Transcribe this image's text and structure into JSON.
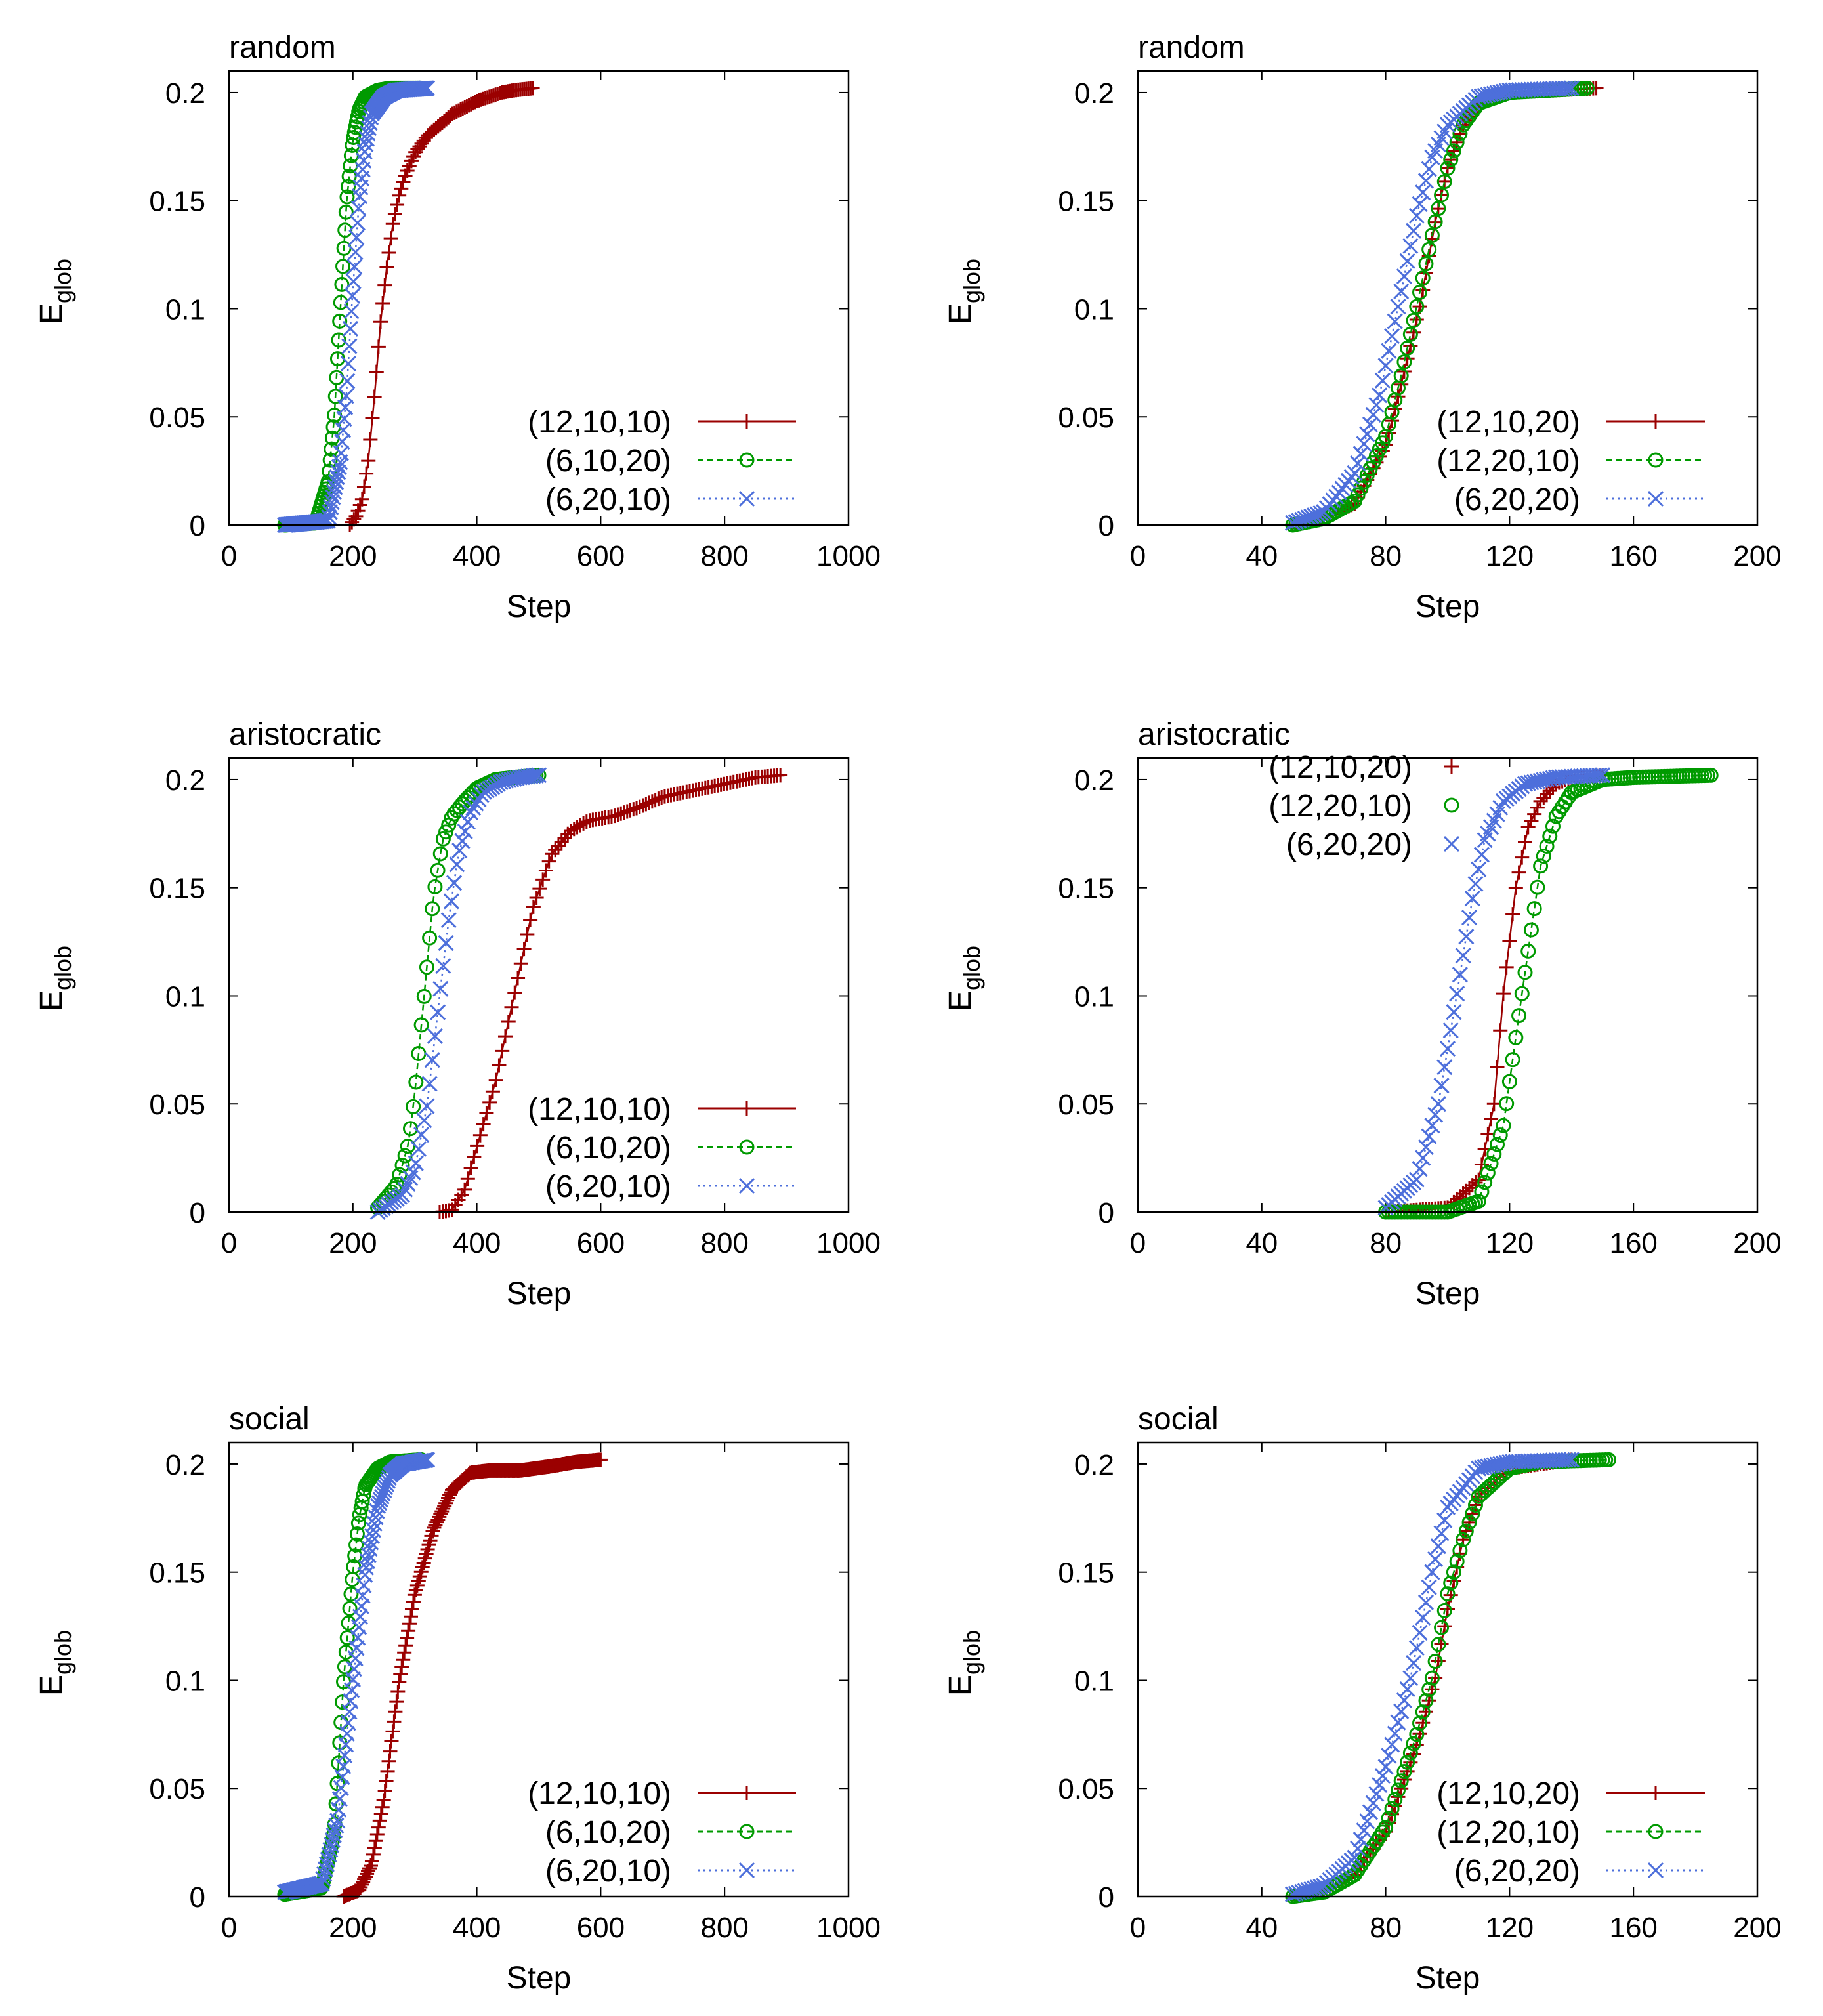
{
  "chart_data": [
    {
      "type": "line",
      "title": "random",
      "xlabel": "Step",
      "ylabel": "E",
      "ylabel_sub": "glob",
      "xlim": [
        0,
        1000
      ],
      "ylim": [
        0,
        0.21
      ],
      "xticks": [
        "0",
        "200",
        "400",
        "600",
        "800",
        "1000"
      ],
      "xtick_values": [
        0,
        200,
        400,
        600,
        800,
        1000
      ],
      "yticks": [
        "0",
        "0.05",
        "0.1",
        "0.15",
        "0.2"
      ],
      "ytick_values": [
        0,
        0.05,
        0.1,
        0.15,
        0.2
      ],
      "legend_position": "bottom-right",
      "series": [
        {
          "name": "(12,10,10)",
          "color": "#9b0000",
          "marker": "plus",
          "linestyle": "solid",
          "start": 195,
          "mid": 245,
          "width": 24,
          "end": 490,
          "n": 90,
          "x": [
            195,
            205,
            215,
            225,
            235,
            245,
            255,
            265,
            275,
            285,
            300,
            320,
            340,
            360,
            380,
            400,
            420,
            440,
            460,
            490
          ],
          "y": [
            0.0,
            0.004,
            0.012,
            0.03,
            0.06,
            0.095,
            0.12,
            0.14,
            0.153,
            0.162,
            0.172,
            0.18,
            0.185,
            0.19,
            0.193,
            0.196,
            0.198,
            0.2,
            0.201,
            0.202
          ]
        },
        {
          "name": "(6,10,20)",
          "color": "#009a00",
          "marker": "circle",
          "linestyle": "dashed",
          "start": 90,
          "mid": 180,
          "width": 12,
          "end": 310,
          "n": 130,
          "x": [
            90,
            140,
            160,
            170,
            180,
            190,
            200,
            210,
            220,
            240,
            260,
            310
          ],
          "y": [
            0.0,
            0.001,
            0.02,
            0.05,
            0.101,
            0.15,
            0.178,
            0.192,
            0.198,
            0.201,
            0.202,
            0.202
          ]
        },
        {
          "name": "(6,20,10)",
          "color": "#4d6fdb",
          "marker": "cross",
          "linestyle": "dotted",
          "start": 90,
          "mid": 198,
          "width": 15,
          "end": 320,
          "n": 140,
          "x": [
            90,
            160,
            180,
            190,
            198,
            210,
            220,
            230,
            250,
            270,
            320
          ],
          "y": [
            0.0,
            0.002,
            0.03,
            0.062,
            0.101,
            0.15,
            0.175,
            0.19,
            0.198,
            0.201,
            0.202
          ]
        }
      ]
    },
    {
      "type": "line",
      "title": "random",
      "xlabel": "Step",
      "ylabel": "E",
      "ylabel_sub": "glob",
      "xlim": [
        0,
        200
      ],
      "ylim": [
        0,
        0.21
      ],
      "xticks": [
        "0",
        "40",
        "80",
        "120",
        "160",
        "200"
      ],
      "xtick_values": [
        0,
        40,
        80,
        120,
        160,
        200
      ],
      "yticks": [
        "0",
        "0.05",
        "0.1",
        "0.15",
        "0.2"
      ],
      "ytick_values": [
        0,
        0.05,
        0.1,
        0.15,
        0.2
      ],
      "legend_position": "bottom-right",
      "series": [
        {
          "name": "(12,10,20)",
          "color": "#9b0000",
          "marker": "plus",
          "linestyle": "solid",
          "start": 50,
          "mid": 91,
          "width": 6.5,
          "end": 148,
          "n": 99,
          "x": [
            50,
            60,
            70,
            80,
            85,
            91,
            96,
            100,
            105,
            110,
            120,
            148
          ],
          "y": [
            0.0,
            0.003,
            0.01,
            0.037,
            0.065,
            0.101,
            0.14,
            0.165,
            0.185,
            0.195,
            0.2,
            0.202
          ]
        },
        {
          "name": "(12,20,10)",
          "color": "#009a00",
          "marker": "circle",
          "linestyle": "dashed",
          "start": 50,
          "mid": 90,
          "width": 6.5,
          "end": 145,
          "n": 96,
          "x": [
            50,
            60,
            70,
            80,
            85,
            90,
            95,
            100,
            105,
            110,
            120,
            145
          ],
          "y": [
            0.0,
            0.003,
            0.011,
            0.041,
            0.069,
            0.101,
            0.134,
            0.165,
            0.185,
            0.195,
            0.2,
            0.202
          ]
        },
        {
          "name": "(6,20,20)",
          "color": "#4d6fdb",
          "marker": "cross",
          "linestyle": "dotted",
          "start": 50,
          "mid": 84,
          "width": 6.5,
          "end": 140,
          "n": 91,
          "x": [
            50,
            60,
            70,
            78,
            84,
            90,
            95,
            100,
            110,
            120,
            140
          ],
          "y": [
            0.001,
            0.006,
            0.024,
            0.06,
            0.101,
            0.143,
            0.17,
            0.185,
            0.198,
            0.201,
            0.202
          ]
        }
      ]
    },
    {
      "type": "line",
      "title": "aristocratic",
      "xlabel": "Step",
      "ylabel": "E",
      "ylabel_sub": "glob",
      "xlim": [
        0,
        1000
      ],
      "ylim": [
        0,
        0.21
      ],
      "xticks": [
        "0",
        "200",
        "400",
        "600",
        "800",
        "1000"
      ],
      "xtick_values": [
        0,
        200,
        400,
        600,
        800,
        1000
      ],
      "yticks": [
        "0",
        "0.05",
        "0.1",
        "0.15",
        "0.2"
      ],
      "ytick_values": [
        0,
        0.05,
        0.1,
        0.15,
        0.2
      ],
      "legend_position": "bottom-right",
      "series": [
        {
          "name": "(12,10,10)",
          "color": "#9b0000",
          "marker": "plus",
          "linestyle": "solid",
          "start": 340,
          "mid": 460,
          "width": 35,
          "end": 890,
          "n": 110,
          "x": [
            340,
            360,
            380,
            400,
            430,
            460,
            490,
            520,
            550,
            580,
            620,
            660,
            700,
            750,
            800,
            850,
            890
          ],
          "y": [
            0.0,
            0.001,
            0.01,
            0.03,
            0.06,
            0.1,
            0.14,
            0.165,
            0.176,
            0.181,
            0.183,
            0.187,
            0.192,
            0.195,
            0.198,
            0.201,
            0.202
          ]
        },
        {
          "name": "(6,10,20)",
          "color": "#009a00",
          "marker": "circle",
          "linestyle": "dashed",
          "start": 240,
          "mid": 315,
          "width": 18,
          "end": 500,
          "n": 60,
          "x": [
            240,
            270,
            290,
            300,
            315,
            330,
            345,
            360,
            380,
            400,
            430,
            460,
            500
          ],
          "y": [
            0.002,
            0.012,
            0.032,
            0.055,
            0.1,
            0.146,
            0.172,
            0.183,
            0.19,
            0.196,
            0.2,
            0.201,
            0.202
          ]
        },
        {
          "name": "(6,20,10)",
          "color": "#4d6fdb",
          "marker": "cross",
          "linestyle": "dotted",
          "start": 240,
          "mid": 340,
          "width": 20,
          "end": 500,
          "n": 60,
          "x": [
            240,
            280,
            300,
            320,
            340,
            355,
            370,
            390,
            410,
            440,
            470,
            500
          ],
          "y": [
            0.0,
            0.008,
            0.02,
            0.05,
            0.1,
            0.136,
            0.165,
            0.185,
            0.194,
            0.199,
            0.201,
            0.202
          ]
        }
      ]
    },
    {
      "type": "line",
      "title": "aristocratic",
      "xlabel": "Step",
      "ylabel": "E",
      "ylabel_sub": "glob",
      "xlim": [
        0,
        200
      ],
      "ylim": [
        0,
        0.21
      ],
      "xticks": [
        "0",
        "40",
        "80",
        "120",
        "160",
        "200"
      ],
      "xtick_values": [
        0,
        40,
        80,
        120,
        160,
        200
      ],
      "yticks": [
        "0",
        "0.05",
        "0.1",
        "0.15",
        "0.2"
      ],
      "ytick_values": [
        0,
        0.05,
        0.1,
        0.15,
        0.2
      ],
      "legend_position": "top-left",
      "series": [
        {
          "name": "(12,10,20)",
          "color": "#9b0000",
          "marker": "plus",
          "linestyle": "solid",
          "start": 80,
          "mid": 118,
          "width": 4.5,
          "end": 150,
          "n": 71,
          "x": [
            80,
            100,
            110,
            115,
            118,
            122,
            126,
            130,
            135,
            140,
            150
          ],
          "y": [
            0.0,
            0.002,
            0.015,
            0.05,
            0.101,
            0.15,
            0.178,
            0.19,
            0.198,
            0.201,
            0.202
          ]
        },
        {
          "name": "(12,20,10)",
          "color": "#009a00",
          "marker": "circle",
          "linestyle": "dashed",
          "start": 80,
          "mid": 124,
          "width": 5,
          "end": 185,
          "n": 106,
          "x": [
            80,
            100,
            110,
            118,
            124,
            130,
            135,
            140,
            150,
            160,
            185
          ],
          "y": [
            0.0,
            0.0,
            0.005,
            0.04,
            0.101,
            0.16,
            0.183,
            0.194,
            0.2,
            0.201,
            0.202
          ]
        },
        {
          "name": "(6,20,20)",
          "color": "#4d6fdb",
          "marker": "cross",
          "linestyle": "dotted",
          "start": 80,
          "mid": 103,
          "width": 5.5,
          "end": 150,
          "n": 71,
          "x": [
            80,
            90,
            97,
            103,
            108,
            112,
            118,
            125,
            135,
            150
          ],
          "y": [
            0.002,
            0.015,
            0.05,
            0.101,
            0.145,
            0.172,
            0.19,
            0.198,
            0.201,
            0.202
          ]
        }
      ]
    },
    {
      "type": "line",
      "title": "social",
      "xlabel": "Step",
      "ylabel": "E",
      "ylabel_sub": "glob",
      "xlim": [
        0,
        1000
      ],
      "ylim": [
        0,
        0.21
      ],
      "xticks": [
        "0",
        "200",
        "400",
        "600",
        "800",
        "1000"
      ],
      "xtick_values": [
        0,
        200,
        400,
        600,
        800,
        1000
      ],
      "yticks": [
        "0",
        "0.05",
        "0.1",
        "0.15",
        "0.2"
      ],
      "ytick_values": [
        0,
        0.05,
        0.1,
        0.15,
        0.2
      ],
      "legend_position": "bottom-right",
      "series": [
        {
          "name": "(12,10,10)",
          "color": "#9b0000",
          "marker": "plus",
          "linestyle": "solid",
          "start": 185,
          "mid": 275,
          "width": 35,
          "end": 600,
          "n": 200,
          "x": [
            185,
            210,
            230,
            250,
            275,
            300,
            330,
            360,
            390,
            420,
            470,
            520,
            560,
            600
          ],
          "y": [
            0.0,
            0.003,
            0.015,
            0.045,
            0.1,
            0.14,
            0.17,
            0.188,
            0.196,
            0.197,
            0.197,
            0.199,
            0.201,
            0.202
          ]
        },
        {
          "name": "(6,10,20)",
          "color": "#009a00",
          "marker": "circle",
          "linestyle": "dashed",
          "start": 90,
          "mid": 185,
          "width": 15,
          "end": 310,
          "n": 110,
          "x": [
            90,
            150,
            170,
            185,
            200,
            210,
            220,
            240,
            260,
            310
          ],
          "y": [
            0.001,
            0.004,
            0.03,
            0.1,
            0.15,
            0.175,
            0.19,
            0.198,
            0.201,
            0.202
          ]
        },
        {
          "name": "(6,20,10)",
          "color": "#4d6fdb",
          "marker": "cross",
          "linestyle": "dotted",
          "start": 90,
          "mid": 200,
          "width": 20,
          "end": 320,
          "n": 120,
          "x": [
            90,
            150,
            175,
            200,
            220,
            240,
            260,
            280,
            320
          ],
          "y": [
            0.002,
            0.006,
            0.035,
            0.1,
            0.15,
            0.18,
            0.195,
            0.2,
            0.202
          ]
        }
      ]
    },
    {
      "type": "line",
      "title": "social",
      "xlabel": "Step",
      "ylabel": "E",
      "ylabel_sub": "glob",
      "xlim": [
        0,
        200
      ],
      "ylim": [
        0,
        0.21
      ],
      "xticks": [
        "0",
        "40",
        "80",
        "120",
        "160",
        "200"
      ],
      "xtick_values": [
        0,
        40,
        80,
        120,
        160,
        200
      ],
      "yticks": [
        "0",
        "0.05",
        "0.1",
        "0.15",
        "0.2"
      ],
      "ytick_values": [
        0,
        0.05,
        0.1,
        0.15,
        0.2
      ],
      "legend_position": "bottom-right",
      "series": [
        {
          "name": "(12,10,20)",
          "color": "#9b0000",
          "marker": "plus",
          "linestyle": "solid",
          "start": 50,
          "mid": 96,
          "width": 7,
          "end": 140,
          "n": 91,
          "x": [
            50,
            60,
            70,
            80,
            90,
            96,
            100,
            105,
            110,
            120,
            140
          ],
          "y": [
            0.0,
            0.002,
            0.01,
            0.03,
            0.07,
            0.101,
            0.133,
            0.165,
            0.185,
            0.198,
            0.202
          ]
        },
        {
          "name": "(12,20,10)",
          "color": "#009a00",
          "marker": "circle",
          "linestyle": "dashed",
          "start": 50,
          "mid": 95,
          "width": 7,
          "end": 152,
          "n": 103,
          "x": [
            50,
            60,
            70,
            80,
            90,
            95,
            100,
            105,
            110,
            120,
            130,
            152
          ],
          "y": [
            0.0,
            0.002,
            0.01,
            0.032,
            0.075,
            0.101,
            0.14,
            0.165,
            0.185,
            0.198,
            0.201,
            0.202
          ]
        },
        {
          "name": "(6,20,20)",
          "color": "#4d6fdb",
          "marker": "cross",
          "linestyle": "dotted",
          "start": 50,
          "mid": 88,
          "width": 7,
          "end": 140,
          "n": 91,
          "x": [
            50,
            60,
            70,
            80,
            88,
            95,
            100,
            110,
            120,
            140
          ],
          "y": [
            0.001,
            0.005,
            0.018,
            0.06,
            0.101,
            0.15,
            0.18,
            0.198,
            0.201,
            0.202
          ]
        }
      ]
    }
  ]
}
